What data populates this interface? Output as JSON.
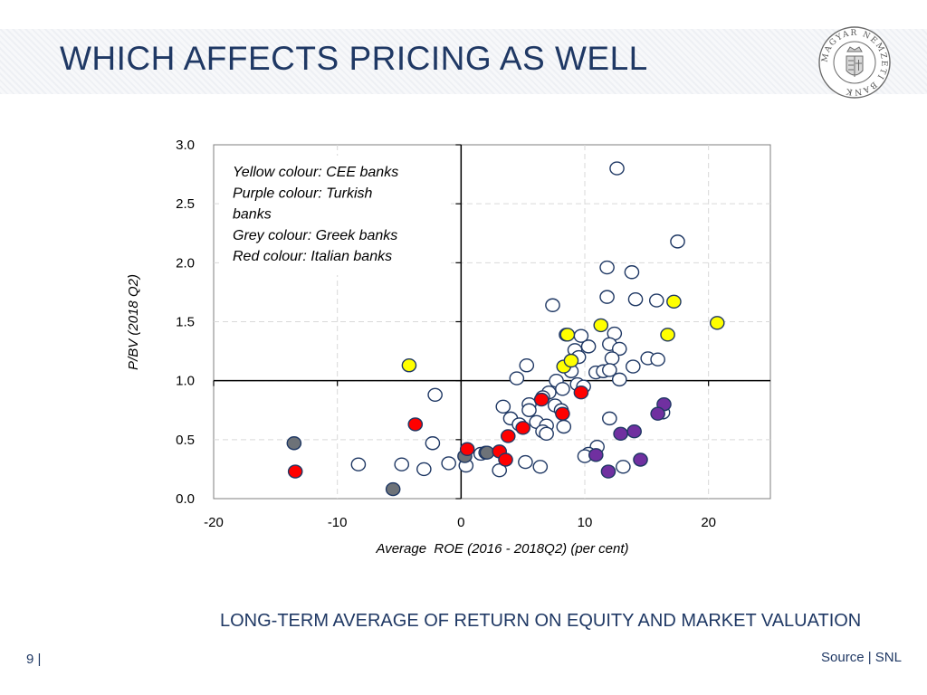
{
  "header": {
    "title": "WHICH AFFECTS PRICING AS WELL",
    "logo_text": "MAGYAR NEMZETI BANK"
  },
  "caption": "LONG-TERM AVERAGE OF RETURN ON EQUITY AND MARKET VALUATION",
  "footer": {
    "page_number": "9 |",
    "source": "Source | SNL"
  },
  "colors": {
    "title": "#1f3864",
    "yellow": "#ffff00",
    "purple": "#7030a0",
    "grey": "#6d7278",
    "red": "#ff0000",
    "other": "#ffffff",
    "marker_stroke": "#1f3864"
  },
  "chart_data": {
    "type": "scatter",
    "xlabel": "Average  ROE (2016 - 2018Q2) (per cent)",
    "ylabel": "P/BV (2018 Q2)",
    "xlim": [
      -20,
      25
    ],
    "ylim": [
      0,
      3
    ],
    "xticks": [
      -20,
      -10,
      0,
      10,
      20
    ],
    "xtick_labels": [
      "-20",
      "-10",
      "0",
      "10",
      "20"
    ],
    "yticks": [
      0,
      0.5,
      1,
      1.5,
      2,
      2.5,
      3
    ],
    "ytick_labels": [
      "0.0",
      "0.5",
      "1.0",
      "1.5",
      "2.0",
      "2.5",
      "3.0"
    ],
    "reference_lines": {
      "x": 0,
      "y": 1
    },
    "legend_lines": [
      "Yellow colour: CEE banks",
      "Purple colour: Turkish",
      "banks",
      "Grey colour: Greek banks",
      "Red colour: Italian banks"
    ],
    "series": [
      {
        "name": "Other banks",
        "color_key": "other",
        "points": [
          [
            12.6,
            2.8
          ],
          [
            17.5,
            2.18
          ],
          [
            11.8,
            1.96
          ],
          [
            13.8,
            1.92
          ],
          [
            7.4,
            1.64
          ],
          [
            11.8,
            1.71
          ],
          [
            14.1,
            1.69
          ],
          [
            15.8,
            1.68
          ],
          [
            8.5,
            1.39
          ],
          [
            9.7,
            1.38
          ],
          [
            12.4,
            1.4
          ],
          [
            12,
            1.31
          ],
          [
            12.8,
            1.27
          ],
          [
            10.3,
            1.29
          ],
          [
            9.2,
            1.26
          ],
          [
            9.5,
            1.2
          ],
          [
            12.2,
            1.19
          ],
          [
            15.1,
            1.19
          ],
          [
            15.9,
            1.18
          ],
          [
            13.9,
            1.12
          ],
          [
            5.3,
            1.13
          ],
          [
            8.9,
            1.08
          ],
          [
            10.9,
            1.07
          ],
          [
            11.5,
            1.08
          ],
          [
            12,
            1.09
          ],
          [
            12.8,
            1.01
          ],
          [
            4.5,
            1.02
          ],
          [
            7.7,
            1
          ],
          [
            9.4,
            0.97
          ],
          [
            9.9,
            0.95
          ],
          [
            8.2,
            0.93
          ],
          [
            7.1,
            0.9
          ],
          [
            6.6,
            0.86
          ],
          [
            5.5,
            0.8
          ],
          [
            3.4,
            0.78
          ],
          [
            7.6,
            0.79
          ],
          [
            8.1,
            0.75
          ],
          [
            5.5,
            0.75
          ],
          [
            4,
            0.68
          ],
          [
            6.1,
            0.65
          ],
          [
            4.7,
            0.63
          ],
          [
            6.9,
            0.62
          ],
          [
            8.3,
            0.61
          ],
          [
            6.6,
            0.57
          ],
          [
            6.9,
            0.55
          ],
          [
            -2.1,
            0.88
          ],
          [
            12,
            0.68
          ],
          [
            -2.3,
            0.47
          ],
          [
            11,
            0.44
          ],
          [
            10.3,
            0.38
          ],
          [
            10,
            0.36
          ],
          [
            1.6,
            0.38
          ],
          [
            2,
            0.39
          ],
          [
            -8.3,
            0.29
          ],
          [
            -4.8,
            0.29
          ],
          [
            -3,
            0.25
          ],
          [
            -1,
            0.3
          ],
          [
            0.4,
            0.28
          ],
          [
            3.1,
            0.24
          ],
          [
            5.2,
            0.31
          ],
          [
            6.4,
            0.27
          ],
          [
            13.1,
            0.27
          ],
          [
            16.3,
            0.73
          ]
        ]
      },
      {
        "name": "CEE banks",
        "color_key": "yellow",
        "points": [
          [
            -4.2,
            1.13
          ],
          [
            8.6,
            1.39
          ],
          [
            11.3,
            1.47
          ],
          [
            17.2,
            1.67
          ],
          [
            16.7,
            1.39
          ],
          [
            20.7,
            1.49
          ],
          [
            8.3,
            1.12
          ],
          [
            8.9,
            1.17
          ]
        ]
      },
      {
        "name": "Turkish banks",
        "color_key": "purple",
        "points": [
          [
            16.4,
            0.8
          ],
          [
            15.9,
            0.72
          ],
          [
            14,
            0.57
          ],
          [
            12.9,
            0.55
          ],
          [
            10.9,
            0.37
          ],
          [
            14.5,
            0.33
          ],
          [
            11.9,
            0.23
          ]
        ]
      },
      {
        "name": "Greek banks",
        "color_key": "grey",
        "points": [
          [
            -13.5,
            0.47
          ],
          [
            -5.5,
            0.08
          ],
          [
            0.3,
            0.36
          ],
          [
            2.1,
            0.39
          ]
        ]
      },
      {
        "name": "Italian banks",
        "color_key": "red",
        "points": [
          [
            -13.4,
            0.23
          ],
          [
            -3.7,
            0.63
          ],
          [
            0.5,
            0.42
          ],
          [
            3.1,
            0.4
          ],
          [
            3.6,
            0.33
          ],
          [
            3.8,
            0.53
          ],
          [
            5,
            0.6
          ],
          [
            6.5,
            0.84
          ],
          [
            8.2,
            0.72
          ],
          [
            9.7,
            0.9
          ]
        ]
      }
    ]
  }
}
